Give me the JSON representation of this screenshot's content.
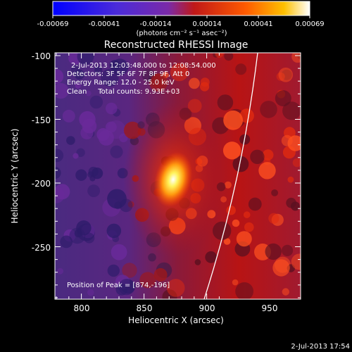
{
  "colorbar": {
    "tick_labels": [
      "-0.00069",
      "-0.00041",
      "-0.00014",
      "0.00014",
      "0.00041",
      "0.00069"
    ],
    "unit_label": "(photons cm⁻² s⁻¹ asec⁻²)"
  },
  "plot": {
    "title": "Reconstructed RHESSI Image",
    "info_lines": [
      "2-Jul-2013 12:03:48.000 to 12:08:54.000",
      "Detectors: 3F 5F 6F 7F 8F 9F, Att 0",
      "Energy Range: 12.0 - 25.0 keV",
      "Clean     Total counts: 9.93E+03"
    ],
    "peak_label": "Position of Peak = [874,-196]",
    "xlabel": "Heliocentric X (arcsec)",
    "ylabel": "Heliocentric Y (arcsec)",
    "x_ticks": [
      "800",
      "850",
      "900",
      "950"
    ],
    "y_ticks": [
      "-100",
      "-150",
      "-200",
      "-250"
    ]
  },
  "footer": {
    "timestamp": "2-Jul-2013 17:54"
  },
  "chart_data": {
    "type": "heatmap",
    "title": "Reconstructed RHESSI Image",
    "xlabel": "Heliocentric X (arcsec)",
    "ylabel": "Heliocentric Y (arcsec)",
    "xlim": [
      778,
      970
    ],
    "ylim": [
      -290,
      -97
    ],
    "peak": {
      "x": 874,
      "y": -196
    },
    "colorbar_range": [
      -0.00069,
      0.00069
    ]
  }
}
